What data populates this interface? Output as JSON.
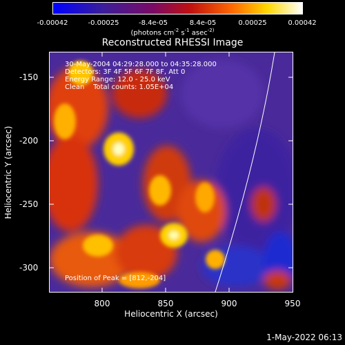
{
  "colorbar": {
    "ticks": [
      "-0.00042",
      "-0.00025",
      "-8.4e-05",
      "8.4e-05",
      "0.00025",
      "0.00042"
    ],
    "unit": "(photons cm",
    "unit_rest": "s",
    "unit_end": "asec",
    "unit_exp1": "-2",
    "unit_exp2": "-1",
    "unit_exp3": "-2)",
    "colors": [
      "#0000ff",
      "#3b1e9a",
      "#7a0a66",
      "#c01010",
      "#ff6a00",
      "#ffd800",
      "#ffffff"
    ]
  },
  "title": "Reconstructed RHESSI Image",
  "info": {
    "line1": "30-May-2004 04:29:28.000 to 04:35:28.000",
    "line2": "Detectors: 3F 4F 5F 6F 7F 8F, Att 0",
    "line3": "Energy Range: 12.0 - 25.0 keV",
    "line4": "Clean    Total counts: 1.05E+04"
  },
  "peak": "Position of Peak = [812,-204]",
  "x_axis": {
    "label": "Heliocentric X (arcsec)",
    "ticks": [
      "800",
      "850",
      "900",
      "950"
    ]
  },
  "y_axis": {
    "label": "Heliocentric Y (arcsec)",
    "ticks": [
      "-150",
      "-200",
      "-250",
      "-300"
    ]
  },
  "timestamp": "1-May-2022 06:13"
}
